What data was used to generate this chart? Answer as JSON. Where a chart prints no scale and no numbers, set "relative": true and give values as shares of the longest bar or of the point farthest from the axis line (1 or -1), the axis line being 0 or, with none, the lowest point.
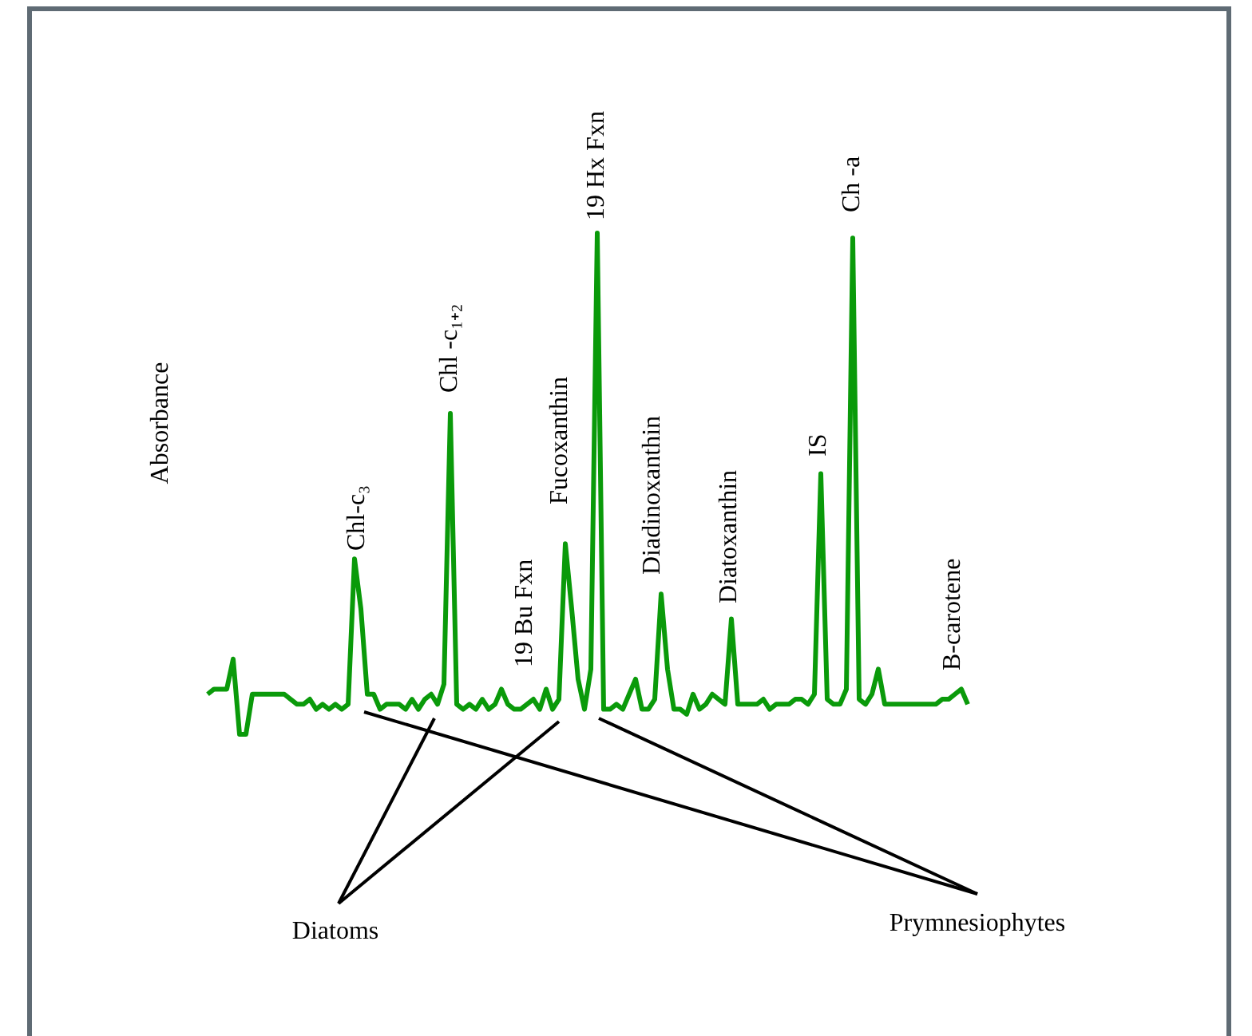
{
  "chart_data": {
    "type": "line",
    "relative": true,
    "categories": [
      null,
      null,
      null,
      null,
      null,
      null,
      null,
      null,
      null,
      null,
      null,
      null,
      null,
      null,
      null,
      null,
      null,
      null,
      null,
      null,
      null,
      null,
      null,
      null,
      null,
      null,
      null,
      null,
      null,
      null,
      null,
      null,
      null,
      null,
      null,
      null,
      null,
      null,
      null,
      null,
      null,
      null,
      null,
      null,
      null,
      null,
      null,
      null,
      null,
      null,
      null,
      null,
      null,
      null,
      null,
      null,
      null,
      null,
      null,
      null,
      null,
      null,
      null,
      null,
      null,
      null,
      null,
      null,
      null,
      null,
      null,
      null,
      null,
      null,
      null,
      null,
      null,
      null,
      null,
      null,
      null,
      null,
      null,
      null,
      null,
      null,
      null,
      null,
      null,
      null,
      null,
      null,
      null,
      null,
      null,
      null,
      null,
      null,
      null,
      null,
      null,
      null,
      null,
      null,
      null,
      null,
      null,
      null,
      null,
      null,
      null,
      null,
      null,
      null,
      null,
      null,
      null,
      null,
      null,
      null
    ],
    "series": [
      {
        "color": "#0a9a0a",
        "values": [
          0.08,
          0.09,
          0.09,
          0.09,
          0.15,
          0,
          0,
          0.08,
          0.08,
          0.08,
          0.08,
          0.08,
          0.08,
          0.07,
          0.06,
          0.06,
          0.07,
          0.05,
          0.06,
          0.05,
          0.06,
          0.05,
          0.06,
          0.35,
          0.25,
          0.08,
          0.08,
          0.05,
          0.06,
          0.06,
          0.06,
          0.05,
          0.07,
          0.05,
          0.07,
          0.08,
          0.06,
          0.1,
          0.64,
          0.06,
          0.05,
          0.06,
          0.05,
          0.07,
          0.05,
          0.06,
          0.09,
          0.06,
          0.05,
          0.05,
          0.06,
          0.07,
          0.05,
          0.09,
          0.05,
          0.07,
          0.38,
          0.25,
          0.11,
          0.05,
          0.13,
          1,
          0.05,
          0.05,
          0.06,
          0.05,
          0.08,
          0.11,
          0.05,
          0.05,
          0.07,
          0.28,
          0.13,
          0.05,
          0.05,
          0.04,
          0.08,
          0.05,
          0.06,
          0.08,
          0.07,
          0.06,
          0.23,
          0.06,
          0.06,
          0.06,
          0.06,
          0.07,
          0.05,
          0.06,
          0.06,
          0.06,
          0.07,
          0.07,
          0.06,
          0.08,
          0.52,
          0.07,
          0.06,
          0.06,
          0.09,
          0.99,
          0.07,
          0.06,
          0.08,
          0.13,
          0.06,
          0.06,
          0.06,
          0.06,
          0.06,
          0.06,
          0.06,
          0.06,
          0.06,
          0.07,
          0.07,
          0.08,
          0.09,
          0.06
        ]
      }
    ],
    "annotations": [
      "Absorbance",
      "Chl-c₃",
      "Chl -c₁₊₂",
      "19 Bu Fxn",
      "Fucoxanthin",
      "19 Hx Fxn",
      "Diadinoxanthin",
      "Diatoxanthin",
      "IS",
      "Ch -a",
      "B-carotene",
      "Diatoms",
      "Prymnesiophytes"
    ]
  }
}
